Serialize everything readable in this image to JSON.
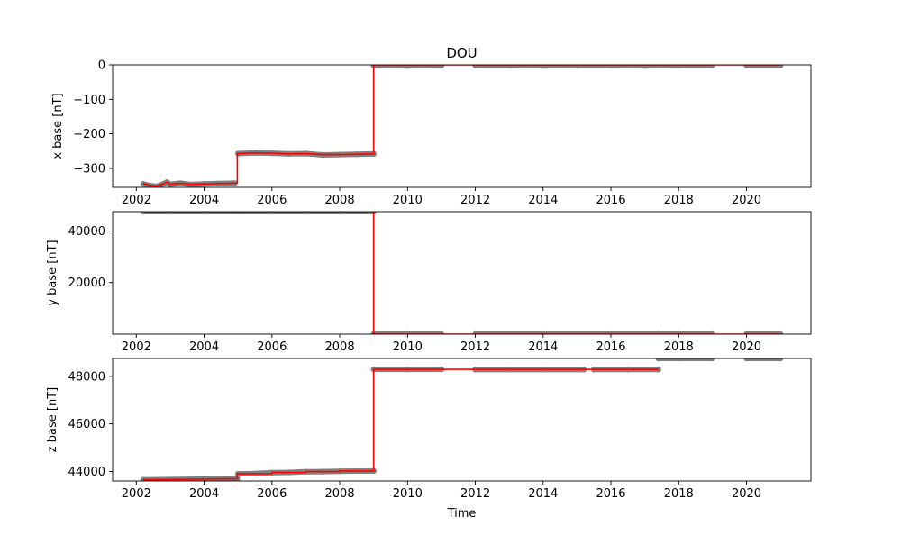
{
  "chart_data": [
    {
      "type": "line",
      "title": "DOU",
      "xlabel": "",
      "ylabel": "x base [nT]",
      "xlim": [
        2001.3,
        2021.9
      ],
      "ylim": [
        -355,
        0
      ],
      "xticks": [
        2002,
        2004,
        2006,
        2008,
        2010,
        2012,
        2014,
        2016,
        2018,
        2020
      ],
      "yticks": [
        0,
        -100,
        -200,
        -300
      ],
      "ytick_labels": [
        "0",
        "−100",
        "−200",
        "−300"
      ],
      "grid": false,
      "series": [
        {
          "role": "measured",
          "color": "#808080",
          "segments": [
            {
              "x": [
                2002.2,
                2002.4,
                2002.6,
                2002.8,
                2002.9,
                2003.0,
                2003.3,
                2003.6,
                2004.0,
                2004.4,
                2004.9
              ],
              "y": [
                -345,
                -350,
                -352,
                -345,
                -340,
                -346,
                -343,
                -347,
                -345,
                -344,
                -343
              ]
            },
            {
              "x": [
                2005.0,
                2005.5,
                2006.0,
                2006.5,
                2007.0,
                2007.5,
                2008.0,
                2008.5,
                2009.0
              ],
              "y": [
                -257,
                -255,
                -256,
                -258,
                -257,
                -261,
                -260,
                -259,
                -258
              ]
            },
            {
              "x": [
                2009.0,
                2010.0,
                2011.0
              ],
              "y": [
                -2,
                -3,
                -2
              ]
            },
            {
              "x": [
                2012.0,
                2013.0,
                2014.0,
                2015.0,
                2016.0,
                2017.0,
                2018.0,
                2019.0
              ],
              "y": [
                -2,
                -2,
                -3,
                -2,
                -2,
                -3,
                -2,
                -2
              ]
            },
            {
              "x": [
                2020.0,
                2021.0
              ],
              "y": [
                -2,
                -2
              ]
            }
          ]
        },
        {
          "role": "baseline",
          "color": "#ff0000",
          "x": [
            2002.2,
            2002.4,
            2002.6,
            2002.8,
            2002.9,
            2003.0,
            2003.3,
            2003.6,
            2004.0,
            2004.4,
            2004.98,
            2004.98,
            2005.5,
            2006.0,
            2006.5,
            2007.0,
            2007.5,
            2008.0,
            2008.5,
            2009.0,
            2009.0,
            2021.0
          ],
          "y": [
            -344,
            -349,
            -351,
            -345,
            -340,
            -346,
            -343,
            -346,
            -345,
            -344,
            -343,
            -257,
            -255,
            -256,
            -258,
            -257,
            -260,
            -260,
            -259,
            -258,
            0,
            0
          ]
        }
      ]
    },
    {
      "type": "line",
      "title": "",
      "xlabel": "",
      "ylabel": "y base [nT]",
      "xlim": [
        2001.3,
        2021.9
      ],
      "ylim": [
        0,
        47500
      ],
      "xticks": [
        2002,
        2004,
        2006,
        2008,
        2010,
        2012,
        2014,
        2016,
        2018,
        2020
      ],
      "yticks": [
        40000,
        20000
      ],
      "ytick_labels": [
        "40000",
        "20000"
      ],
      "grid": false,
      "series": [
        {
          "role": "measured",
          "color": "#808080",
          "segments": [
            {
              "x": [
                2002.2,
                2003.0,
                2004.0,
                2005.0,
                2006.0,
                2007.0,
                2008.0,
                2009.0
              ],
              "y": [
                47500,
                47500,
                47500,
                47500,
                47500,
                47500,
                47500,
                47500
              ]
            },
            {
              "x": [
                2009.0,
                2010.0,
                2011.0
              ],
              "y": [
                0,
                0,
                0
              ]
            },
            {
              "x": [
                2012.0,
                2014.0,
                2016.0,
                2017.4
              ],
              "y": [
                0,
                0,
                0,
                0
              ]
            },
            {
              "x": [
                2017.4,
                2018.0,
                2019.0
              ],
              "y": [
                0,
                0,
                0
              ]
            },
            {
              "x": [
                2020.0,
                2021.0
              ],
              "y": [
                0,
                0
              ]
            }
          ]
        },
        {
          "role": "baseline",
          "color": "#ff0000",
          "x": [
            2002.2,
            2009.0,
            2009.0,
            2021.0
          ],
          "y": [
            47500,
            47500,
            0,
            0
          ]
        }
      ]
    },
    {
      "type": "line",
      "title": "",
      "xlabel": "Time",
      "ylabel": "z base [nT]",
      "xlim": [
        2001.3,
        2021.9
      ],
      "ylim": [
        43600,
        48750
      ],
      "xticks": [
        2002,
        2004,
        2006,
        2008,
        2010,
        2012,
        2014,
        2016,
        2018,
        2020
      ],
      "yticks": [
        48000,
        46000,
        44000
      ],
      "ytick_labels": [
        "48000",
        "46000",
        "44000"
      ],
      "grid": false,
      "series": [
        {
          "role": "measured",
          "color": "#808080",
          "segments": [
            {
              "x": [
                2002.2,
                2003.0,
                2004.0,
                2004.98
              ],
              "y": [
                43650,
                43660,
                43680,
                43700
              ]
            },
            {
              "x": [
                2005.0,
                2005.5,
                2006.0,
                2006.5,
                2007.0,
                2007.5,
                2008.0,
                2009.0
              ],
              "y": [
                43900,
                43910,
                43950,
                43960,
                43990,
                43995,
                44010,
                44020
              ]
            },
            {
              "x": [
                2009.0,
                2010.0,
                2011.0
              ],
              "y": [
                48290,
                48290,
                48290
              ]
            },
            {
              "x": [
                2012.0,
                2013.0,
                2014.0,
                2015.2
              ],
              "y": [
                48280,
                48280,
                48280,
                48280
              ]
            },
            {
              "x": [
                2015.5,
                2016.5,
                2017.4
              ],
              "y": [
                48285,
                48285,
                48285
              ]
            },
            {
              "x": [
                2017.4,
                2018.0,
                2019.0
              ],
              "y": [
                48750,
                48750,
                48750
              ]
            },
            {
              "x": [
                2020.0,
                2021.0
              ],
              "y": [
                48750,
                48750
              ]
            }
          ]
        },
        {
          "role": "baseline",
          "color": "#ff0000",
          "x": [
            2002.2,
            2004.98,
            2004.98,
            2006.0,
            2006.0,
            2007.0,
            2007.0,
            2008.0,
            2008.0,
            2009.0,
            2009.0,
            2017.4
          ],
          "y": [
            43650,
            43700,
            43900,
            43910,
            43960,
            43960,
            43995,
            43995,
            44020,
            44020,
            48290,
            48290
          ]
        }
      ]
    }
  ]
}
